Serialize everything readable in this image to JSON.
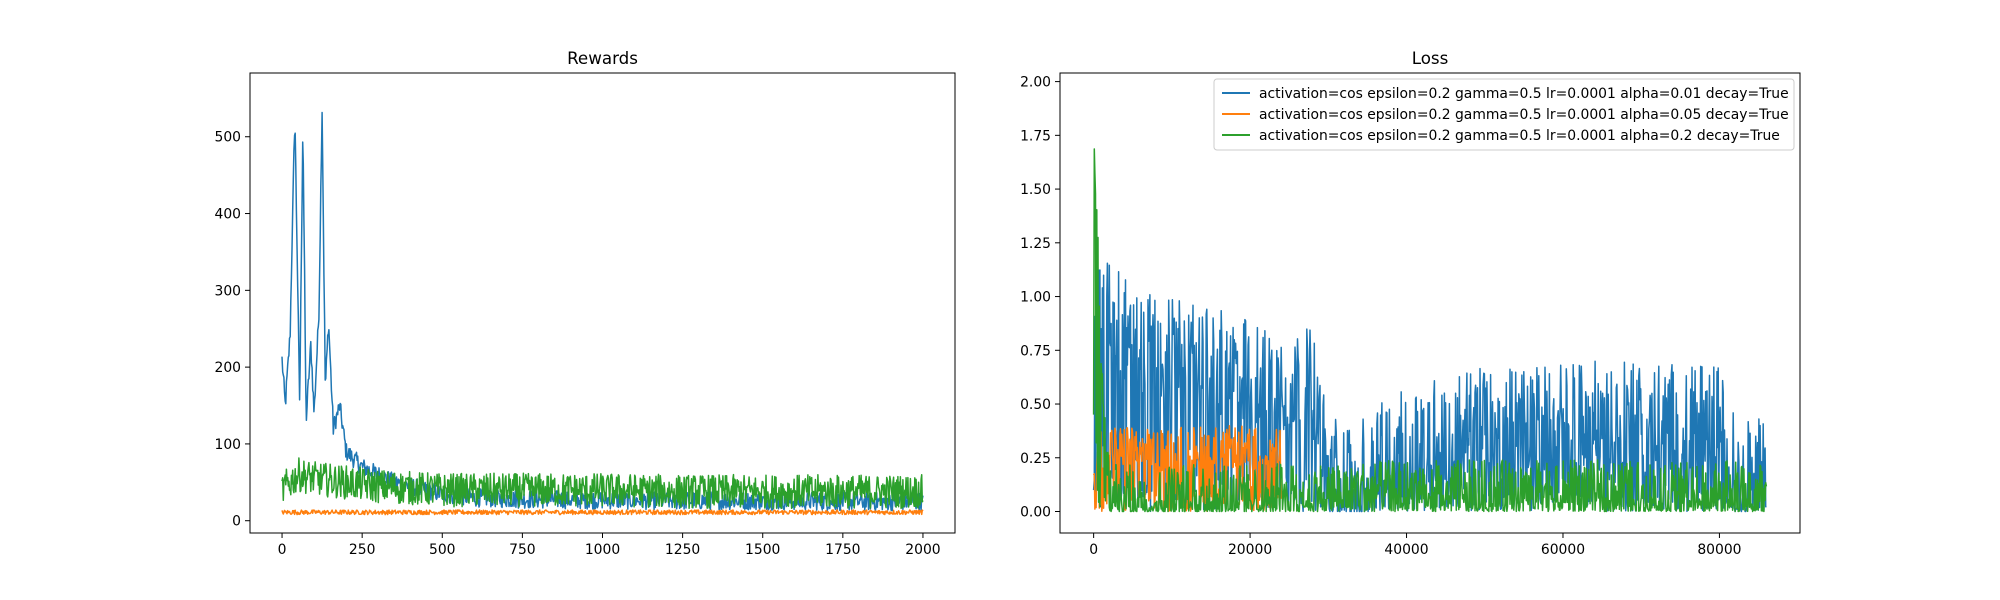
{
  "colors": {
    "blue": "#1f77b4",
    "orange": "#ff7f0e",
    "green": "#2ca02c"
  },
  "chart_data": [
    {
      "type": "line",
      "title": "Rewards",
      "xlabel": "",
      "ylabel": "",
      "xlim": [
        -100,
        2100
      ],
      "ylim": [
        -16,
        583
      ],
      "xticks": [
        0,
        250,
        500,
        750,
        1000,
        1250,
        1500,
        1750,
        2000
      ],
      "xtick_labels": [
        "0",
        "250",
        "500",
        "750",
        "1000",
        "1250",
        "1500",
        "1750",
        "2000"
      ],
      "yticks": [
        0,
        100,
        200,
        300,
        400,
        500
      ],
      "ytick_labels": [
        "0",
        "100",
        "200",
        "300",
        "400",
        "500"
      ],
      "grid": false,
      "legend": null,
      "series": [
        {
          "color": "#1f77b4",
          "x": [
            0,
            10,
            25,
            40,
            55,
            65,
            75,
            90,
            100,
            115,
            125,
            135,
            145,
            160,
            180,
            200,
            250,
            300,
            350,
            400,
            500,
            600,
            750,
            1000,
            1250,
            1500,
            1750,
            2000
          ],
          "y": [
            210,
            150,
            240,
            530,
            150,
            520,
            130,
            230,
            140,
            270,
            540,
            170,
            260,
            120,
            150,
            90,
            70,
            60,
            50,
            45,
            35,
            30,
            28,
            27,
            26,
            26,
            25,
            25
          ],
          "noise": 12
        },
        {
          "color": "#ff7f0e",
          "x": [
            0,
            500,
            1000,
            1500,
            2000
          ],
          "y": [
            11,
            11,
            11,
            11,
            11
          ],
          "noise": 3
        },
        {
          "color": "#2ca02c",
          "x": [
            0,
            50,
            100,
            200,
            300,
            500,
            750,
            1000,
            1250,
            1500,
            1750,
            2000
          ],
          "y": [
            40,
            60,
            55,
            50,
            45,
            40,
            40,
            40,
            38,
            38,
            38,
            38
          ],
          "noise": 22
        }
      ]
    },
    {
      "type": "line",
      "title": "Loss",
      "xlabel": "",
      "ylabel": "",
      "xlim": [
        -4300,
        90300
      ],
      "ylim": [
        -0.1,
        2.04
      ],
      "xticks": [
        0,
        20000,
        40000,
        60000,
        80000
      ],
      "xtick_labels": [
        "0",
        "20000",
        "40000",
        "60000",
        "80000"
      ],
      "yticks": [
        0.0,
        0.25,
        0.5,
        0.75,
        1.0,
        1.25,
        1.5,
        1.75,
        2.0
      ],
      "ytick_labels": [
        "0.00",
        "0.25",
        "0.50",
        "0.75",
        "1.00",
        "1.25",
        "1.50",
        "1.75",
        "2.00"
      ],
      "grid": false,
      "legend": "top-right",
      "series": [
        {
          "name": "activation=cos epsilon=0.2 gamma=0.5 lr=0.0001 alpha=0.01 decay=True",
          "color": "#1f77b4",
          "x": [
            0,
            1000,
            2000,
            5000,
            10000,
            20000,
            28000,
            30000,
            35000,
            40000,
            50000,
            60000,
            70000,
            80000,
            82000,
            86000
          ],
          "y": [
            0.7,
            1.05,
            0.95,
            0.8,
            0.75,
            0.65,
            0.6,
            0.2,
            0.2,
            0.35,
            0.42,
            0.45,
            0.45,
            0.43,
            0.2,
            0.18
          ],
          "noise": 0.25
        },
        {
          "name": "activation=cos epsilon=0.2 gamma=0.5 lr=0.0001 alpha=0.05 decay=True",
          "color": "#ff7f0e",
          "x": [
            0,
            1000,
            3000,
            8000,
            12000,
            16000,
            20000,
            24000
          ],
          "y": [
            0.15,
            0.3,
            0.3,
            0.28,
            0.3,
            0.3,
            0.3,
            0.28
          ],
          "noise": 0.1
        },
        {
          "name": "activation=cos epsilon=0.2 gamma=0.5 lr=0.0001 alpha=0.2 decay=True",
          "color": "#2ca02c",
          "x": [
            0,
            300,
            1000,
            2000,
            5000,
            20000,
            40000,
            60000,
            80000,
            86000
          ],
          "y": [
            1.9,
            1.5,
            0.6,
            0.1,
            0.1,
            0.1,
            0.12,
            0.12,
            0.12,
            0.1
          ],
          "noise": 0.12
        }
      ]
    }
  ]
}
